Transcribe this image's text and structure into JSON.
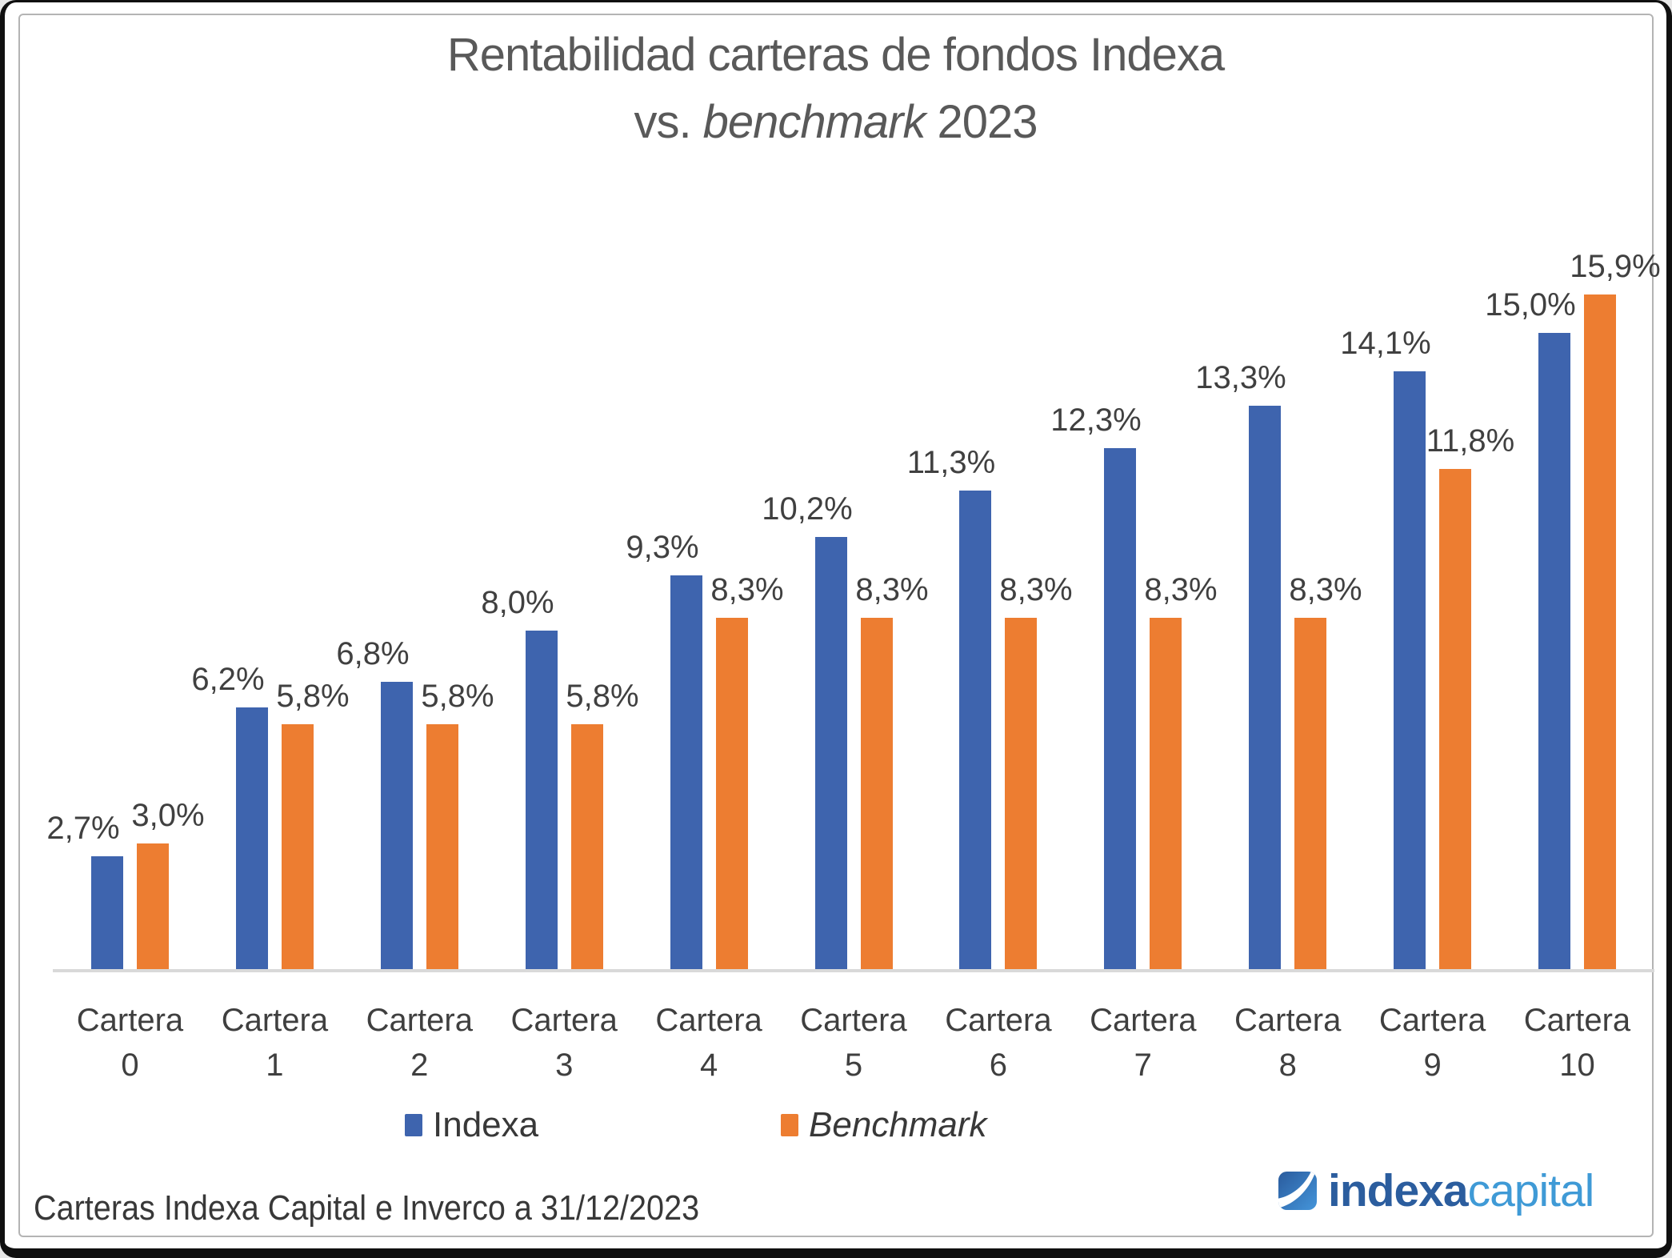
{
  "title": {
    "line1": "Rentabilidad carteras de fondos Indexa",
    "line2_prefix": "vs.",
    "line2_italic": "benchmark",
    "line2_suffix": "2023"
  },
  "legend": {
    "indexa": "Indexa",
    "benchmark": "Benchmark"
  },
  "footer": {
    "source": "Carteras Indexa Capital e Inverco a 31/12/2023"
  },
  "logo": {
    "brand_bold": "indexa",
    "brand_light": "capital",
    "icon": "indexa-capital-swoosh-icon",
    "color_bold": "#2B5D9E",
    "color_light": "#3F9AD6"
  },
  "colors": {
    "indexa_bar": "#3E64AE",
    "benchmark_bar": "#ED7D31",
    "axis_line": "#d9d9d9",
    "title_text": "#595959",
    "label_text": "#404040"
  },
  "chart_data": {
    "type": "bar",
    "title": "Rentabilidad carteras de fondos Indexa vs. benchmark 2023",
    "categories": [
      "Cartera 0",
      "Cartera 1",
      "Cartera 2",
      "Cartera 3",
      "Cartera 4",
      "Cartera 5",
      "Cartera 6",
      "Cartera 7",
      "Cartera 8",
      "Cartera 9",
      "Cartera 10"
    ],
    "series": [
      {
        "name": "Indexa",
        "color": "#3E64AE",
        "values": [
          2.7,
          6.2,
          6.8,
          8.0,
          9.3,
          10.2,
          11.3,
          12.3,
          13.3,
          14.1,
          15.0
        ],
        "labels": [
          "2,7%",
          "6,2%",
          "6,8%",
          "8,0%",
          "9,3%",
          "10,2%",
          "11,3%",
          "12,3%",
          "13,3%",
          "14,1%",
          "15,0%"
        ]
      },
      {
        "name": "Benchmark",
        "color": "#ED7D31",
        "values": [
          3.0,
          5.8,
          5.8,
          5.8,
          8.3,
          8.3,
          8.3,
          8.3,
          8.3,
          11.8,
          15.9
        ],
        "labels": [
          "3,0%",
          "5,8%",
          "5,8%",
          "5,8%",
          "8,3%",
          "8,3%",
          "8,3%",
          "8,3%",
          "8,3%",
          "11,8%",
          "15,9%"
        ]
      }
    ],
    "ylim": [
      0,
      18.7
    ],
    "grid": false,
    "y_axis_visible": false,
    "legend_position": "bottom",
    "source_note": "Carteras Indexa Capital e Inverco a 31/12/2023"
  }
}
